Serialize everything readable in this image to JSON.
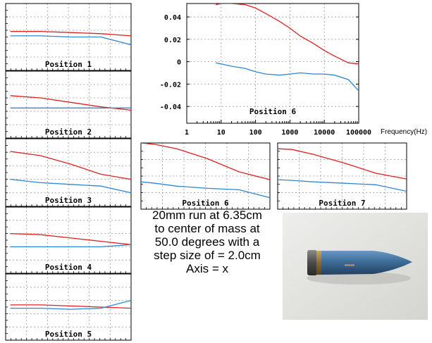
{
  "colors": {
    "series_red": "#e02020",
    "series_blue": "#2d86d6",
    "grid": "#9a9a9a",
    "frame": "#000000"
  },
  "caption": [
    "20mm run at 6.35cm",
    "to center of mass at",
    "50.0 degrees with a",
    "step size of = 2.0cm",
    "Axis = x"
  ],
  "photo": {
    "subject": "20mm projectile"
  },
  "chart_data": [
    {
      "type": "line",
      "label": "Position 1",
      "x_scale": "log",
      "x": [
        10,
        100,
        1000,
        10000,
        100000
      ],
      "series": [
        {
          "color": "red",
          "values": [
            0.025,
            0.025,
            0.024,
            0.023,
            0.021
          ]
        },
        {
          "color": "blue",
          "values": [
            0.021,
            0.021,
            0.02,
            0.02,
            0.013
          ]
        }
      ]
    },
    {
      "type": "line",
      "label": "Position 2",
      "x_scale": "log",
      "x": [
        10,
        100,
        1000,
        10000,
        100000
      ],
      "series": [
        {
          "color": "red",
          "values": [
            0.028,
            0.026,
            0.022,
            0.018,
            0.015
          ]
        },
        {
          "color": "blue",
          "values": [
            0.017,
            0.017,
            0.017,
            0.017,
            0.017
          ]
        }
      ]
    },
    {
      "type": "line",
      "label": "Position 3",
      "x_scale": "log",
      "x": [
        10,
        100,
        1000,
        10000,
        100000
      ],
      "series": [
        {
          "color": "red",
          "values": [
            0.045,
            0.04,
            0.03,
            0.018,
            0.012
          ]
        },
        {
          "color": "blue",
          "values": [
            0.012,
            0.008,
            0.006,
            0.004,
            -0.004
          ]
        }
      ]
    },
    {
      "type": "line",
      "label": "Position 4",
      "x_scale": "log",
      "x": [
        10,
        100,
        1000,
        10000,
        100000
      ],
      "series": [
        {
          "color": "red",
          "values": [
            0.026,
            0.025,
            0.022,
            0.019,
            0.016
          ]
        },
        {
          "color": "blue",
          "values": [
            0.014,
            0.014,
            0.014,
            0.014,
            0.016
          ]
        }
      ]
    },
    {
      "type": "line",
      "label": "Position 5",
      "x_scale": "log",
      "x": [
        10,
        100,
        1000,
        10000,
        100000
      ],
      "series": [
        {
          "color": "red",
          "values": [
            0.022,
            0.022,
            0.021,
            0.02,
            0.019
          ]
        },
        {
          "color": "blue",
          "values": [
            0.019,
            0.019,
            0.018,
            0.019,
            0.026
          ]
        }
      ]
    },
    {
      "type": "line",
      "label": "Position 6",
      "x_scale": "log",
      "xlabel": "Frequency(Hz)",
      "xlim": [
        1,
        100000
      ],
      "ylim": [
        -0.055,
        0.052
      ],
      "xticks": [
        "1",
        "10",
        "100",
        "1000",
        "10000",
        "100000"
      ],
      "yticks": [
        "0.04",
        "0.02",
        "0",
        "-0.02",
        "-0.04"
      ],
      "x": [
        7,
        10,
        20,
        50,
        100,
        200,
        500,
        1000,
        2000,
        5000,
        10000,
        20000,
        50000,
        100000
      ],
      "series": [
        {
          "color": "red",
          "values": [
            0.051,
            0.052,
            0.052,
            0.051,
            0.048,
            0.043,
            0.036,
            0.03,
            0.023,
            0.016,
            0.01,
            0.005,
            -0.001,
            -0.002
          ]
        },
        {
          "color": "blue",
          "values": [
            -0.001,
            -0.002,
            -0.004,
            -0.006,
            -0.009,
            -0.011,
            -0.012,
            -0.011,
            -0.01,
            -0.011,
            -0.011,
            -0.012,
            -0.016,
            -0.026
          ]
        }
      ]
    },
    {
      "type": "line",
      "label": "Position 6",
      "x_scale": "log",
      "x": [
        7,
        20,
        100,
        1000,
        10000,
        100000
      ],
      "series": [
        {
          "color": "red",
          "values": [
            0.052,
            0.05,
            0.044,
            0.03,
            0.012,
            0.001
          ]
        },
        {
          "color": "blue",
          "values": [
            -0.002,
            -0.004,
            -0.008,
            -0.011,
            -0.013,
            -0.024
          ]
        }
      ]
    },
    {
      "type": "line",
      "label": "Position 7",
      "x_scale": "log",
      "x": [
        7,
        20,
        100,
        1000,
        10000,
        100000
      ],
      "series": [
        {
          "color": "red",
          "values": [
            0.044,
            0.043,
            0.036,
            0.024,
            0.01,
            0.002
          ]
        },
        {
          "color": "blue",
          "values": [
            0.001,
            0.0,
            -0.002,
            -0.004,
            -0.006,
            -0.015
          ]
        }
      ]
    }
  ]
}
